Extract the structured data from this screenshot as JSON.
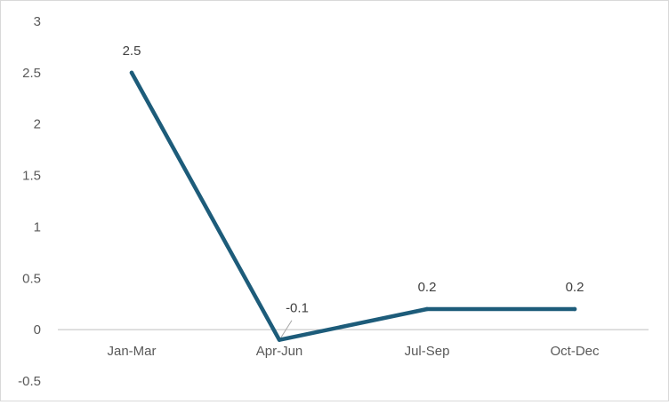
{
  "chart_data": {
    "type": "line",
    "categories": [
      "Jan-Mar",
      "Apr-Jun",
      "Jul-Sep",
      "Oct-Dec"
    ],
    "series": [
      {
        "values": [
          2.5,
          -0.1,
          0.2,
          0.2
        ],
        "data_labels": [
          "2.5",
          "-0.1",
          "0.2",
          "0.2"
        ]
      }
    ],
    "ylim": [
      -0.5,
      3
    ],
    "yticks": [
      3,
      2.5,
      2,
      1.5,
      1,
      0.5,
      0,
      -0.5
    ],
    "ytick_labels": [
      "3",
      "2.5",
      "2",
      "1.5",
      "1",
      "0.5",
      "0",
      "-0.5"
    ],
    "grid": false,
    "legend": "none",
    "colors": {
      "line": "#1d5c7a",
      "zero_axis": "#bfbfbf",
      "leader": "#a6a6a6"
    }
  }
}
